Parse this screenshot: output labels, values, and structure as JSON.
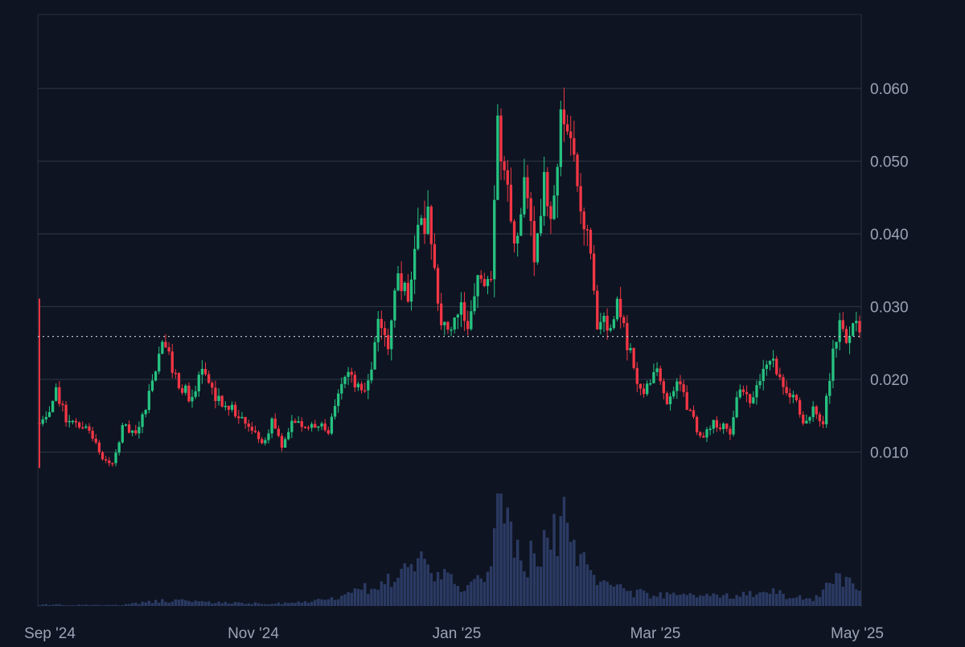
{
  "chart_data": {
    "type": "candlestick",
    "colors": {
      "background": "#0e1421",
      "up": "#26c281",
      "down": "#f23645",
      "volume": "#2b3a63",
      "grid": "#2a3140",
      "text": "#9aa4b6"
    },
    "x_ticks": [
      "Sep '24",
      "Nov '24",
      "Jan '25",
      "Mar '25",
      "May '25"
    ],
    "y_ticks": [
      "0.010",
      "0.020",
      "0.030",
      "0.040",
      "0.050",
      "0.060"
    ],
    "ylim": [
      0.0,
      0.07
    ],
    "last_price": 0.0259,
    "grid": true,
    "start_date": "2024-09-01",
    "end_date": "2025-05-01",
    "close_path": [
      [
        "2024-09-01",
        0.0145
      ],
      [
        "2024-09-04",
        0.0155
      ],
      [
        "2024-09-06",
        0.0185
      ],
      [
        "2024-09-09",
        0.0145
      ],
      [
        "2024-09-13",
        0.014
      ],
      [
        "2024-09-16",
        0.0135
      ],
      [
        "2024-09-20",
        0.009
      ],
      [
        "2024-09-23",
        0.0085
      ],
      [
        "2024-09-26",
        0.0135
      ],
      [
        "2024-09-30",
        0.013
      ],
      [
        "2024-10-03",
        0.016
      ],
      [
        "2024-10-07",
        0.0235
      ],
      [
        "2024-10-09",
        0.0255
      ],
      [
        "2024-10-12",
        0.02
      ],
      [
        "2024-10-15",
        0.0185
      ],
      [
        "2024-10-17",
        0.017
      ],
      [
        "2024-10-20",
        0.0215
      ],
      [
        "2024-10-24",
        0.0175
      ],
      [
        "2024-10-28",
        0.0165
      ],
      [
        "2024-10-31",
        0.015
      ],
      [
        "2024-11-04",
        0.013
      ],
      [
        "2024-11-07",
        0.011
      ],
      [
        "2024-11-10",
        0.014
      ],
      [
        "2024-11-13",
        0.011
      ],
      [
        "2024-11-16",
        0.0145
      ],
      [
        "2024-11-20",
        0.0135
      ],
      [
        "2024-11-24",
        0.014
      ],
      [
        "2024-11-27",
        0.0125
      ],
      [
        "2024-11-30",
        0.0185
      ],
      [
        "2024-12-03",
        0.0205
      ],
      [
        "2024-12-07",
        0.018
      ],
      [
        "2024-12-10",
        0.022
      ],
      [
        "2024-12-12",
        0.028
      ],
      [
        "2024-12-15",
        0.025
      ],
      [
        "2024-12-18",
        0.034
      ],
      [
        "2024-12-21",
        0.031
      ],
      [
        "2024-12-24",
        0.04
      ],
      [
        "2024-12-27",
        0.042
      ],
      [
        "2024-12-30",
        0.03
      ],
      [
        "2025-01-02",
        0.026
      ],
      [
        "2025-01-05",
        0.03
      ],
      [
        "2025-01-08",
        0.028
      ],
      [
        "2025-01-11",
        0.034
      ],
      [
        "2025-01-13",
        0.032
      ],
      [
        "2025-01-15",
        0.034
      ],
      [
        "2025-01-17",
        0.056
      ],
      [
        "2025-01-19",
        0.048
      ],
      [
        "2025-01-21",
        0.042
      ],
      [
        "2025-01-23",
        0.039
      ],
      [
        "2025-01-25",
        0.048
      ],
      [
        "2025-01-28",
        0.037
      ],
      [
        "2025-01-31",
        0.047
      ],
      [
        "2025-02-02",
        0.042
      ],
      [
        "2025-02-05",
        0.056
      ],
      [
        "2025-02-08",
        0.052
      ],
      [
        "2025-02-11",
        0.044
      ],
      [
        "2025-02-14",
        0.038
      ],
      [
        "2025-02-16",
        0.028
      ],
      [
        "2025-02-19",
        0.0275
      ],
      [
        "2025-02-22",
        0.03
      ],
      [
        "2025-02-25",
        0.025
      ],
      [
        "2025-02-28",
        0.02
      ],
      [
        "2025-03-02",
        0.0175
      ],
      [
        "2025-03-06",
        0.022
      ],
      [
        "2025-03-09",
        0.0165
      ],
      [
        "2025-03-12",
        0.0195
      ],
      [
        "2025-03-16",
        0.0155
      ],
      [
        "2025-03-19",
        0.012
      ],
      [
        "2025-03-23",
        0.014
      ],
      [
        "2025-03-28",
        0.013
      ],
      [
        "2025-03-31",
        0.019
      ],
      [
        "2025-04-04",
        0.017
      ],
      [
        "2025-04-07",
        0.022
      ],
      [
        "2025-04-10",
        0.022
      ],
      [
        "2025-04-13",
        0.019
      ],
      [
        "2025-04-16",
        0.018
      ],
      [
        "2025-04-19",
        0.014
      ],
      [
        "2025-04-22",
        0.016
      ],
      [
        "2025-04-25",
        0.014
      ],
      [
        "2025-04-28",
        0.024
      ],
      [
        "2025-04-30",
        0.028
      ],
      [
        "2025-05-02",
        0.0245
      ],
      [
        "2025-05-04",
        0.028
      ],
      [
        "2025-05-06",
        0.026
      ]
    ],
    "volume_path": [
      [
        "2024-09-01",
        0.012
      ],
      [
        "2024-09-25",
        0.008
      ],
      [
        "2024-10-08",
        0.05
      ],
      [
        "2024-11-10",
        0.02
      ],
      [
        "2024-11-28",
        0.06
      ],
      [
        "2024-12-12",
        0.2
      ],
      [
        "2024-12-20",
        0.3
      ],
      [
        "2024-12-27",
        0.4
      ],
      [
        "2025-01-05",
        0.15
      ],
      [
        "2025-01-15",
        0.3
      ],
      [
        "2025-01-17",
        1.0
      ],
      [
        "2025-01-24",
        0.35
      ],
      [
        "2025-02-06",
        0.7
      ],
      [
        "2025-02-14",
        0.28
      ],
      [
        "2025-02-25",
        0.12
      ],
      [
        "2025-03-20",
        0.08
      ],
      [
        "2025-04-10",
        0.12
      ],
      [
        "2025-04-22",
        0.06
      ],
      [
        "2025-04-29",
        0.3
      ],
      [
        "2025-05-06",
        0.12
      ]
    ],
    "volume_spikes": [
      [
        "2025-01-17",
        1.0
      ],
      [
        "2025-02-06",
        0.97
      ],
      [
        "2025-01-27",
        0.58
      ],
      [
        "2025-02-02",
        0.5
      ],
      [
        "2024-12-26",
        0.42
      ],
      [
        "2024-12-20",
        0.38
      ]
    ]
  }
}
